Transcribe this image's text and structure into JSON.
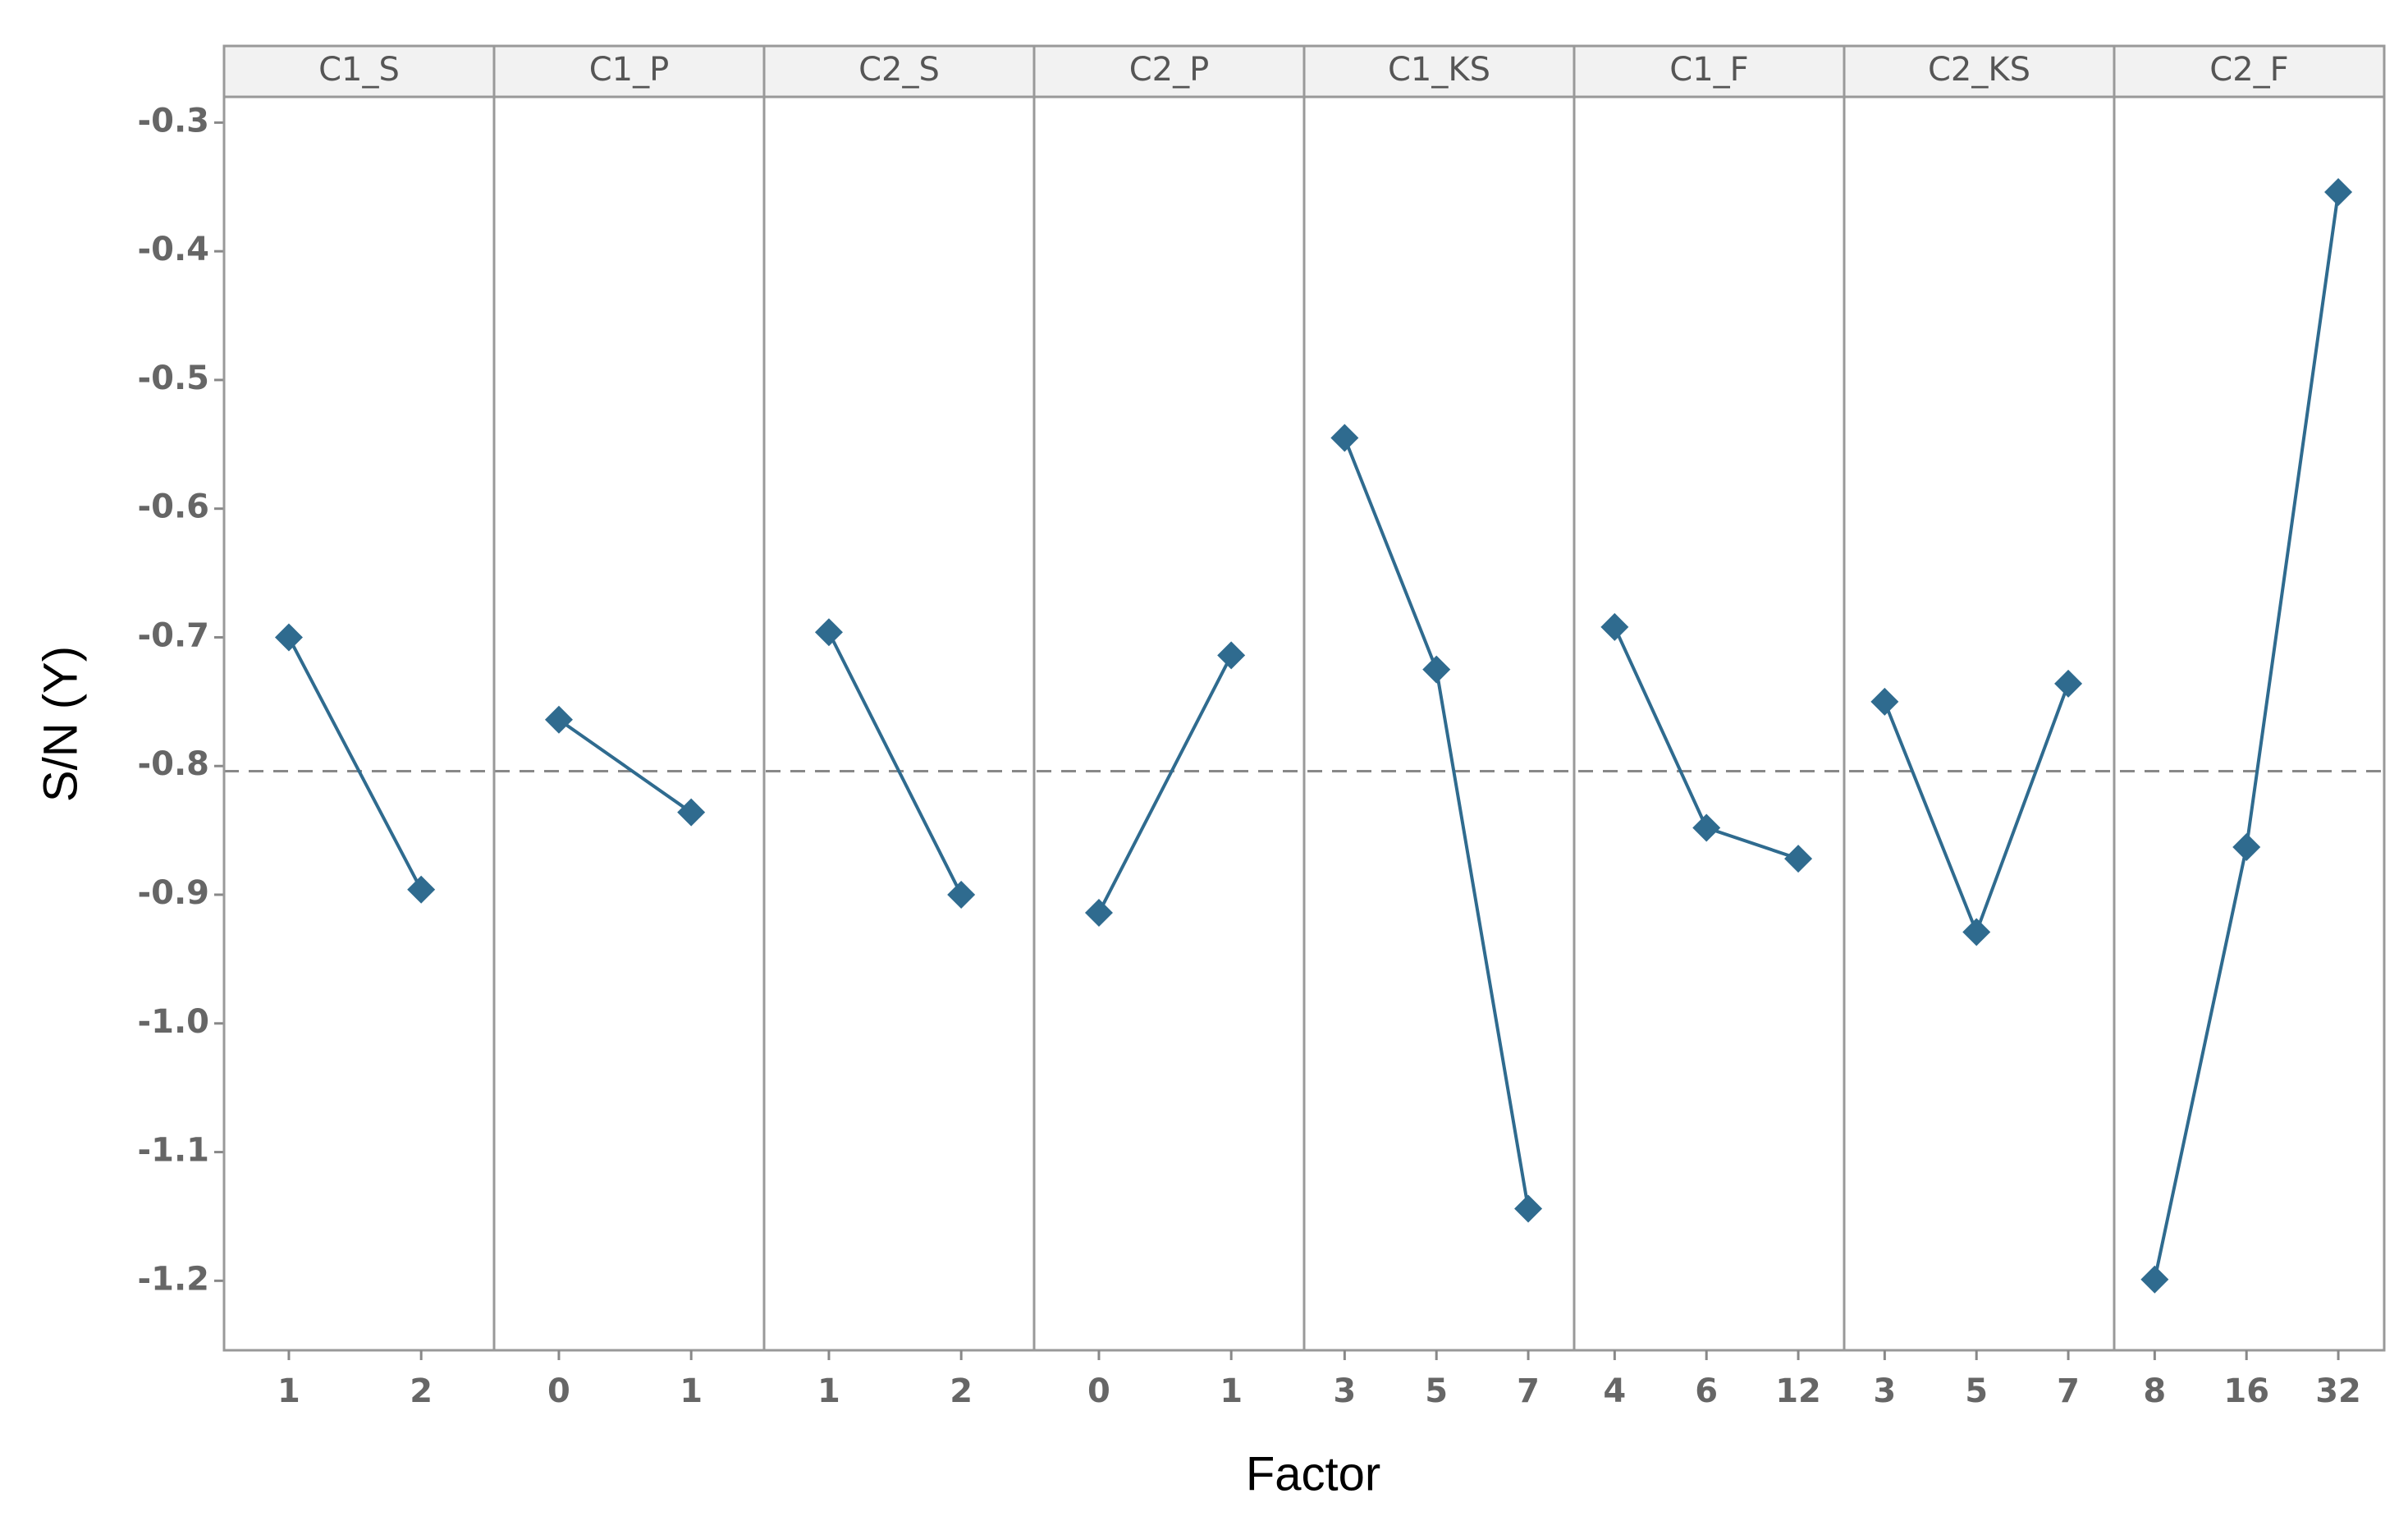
{
  "chart_data": {
    "type": "line",
    "xlabel": "Factor",
    "ylabel": "S/N (Y)",
    "color": "#2f6b8f",
    "ylim": [
      -1.254,
      -0.28
    ],
    "yticks": [
      -0.3,
      -0.4,
      -0.5,
      -0.6,
      -0.7,
      -0.8,
      -0.9,
      {
        "value": -1,
        "label": "-1.0"
      },
      -1.1,
      -1.2
    ],
    "reference_line": -0.804,
    "panels": [
      {
        "title": "C1_S",
        "categories": [
          "1",
          "2"
        ],
        "values": [
          -0.7,
          -0.896
        ]
      },
      {
        "title": "C1_P",
        "categories": [
          "0",
          "1"
        ],
        "values": [
          -0.764,
          -0.836
        ]
      },
      {
        "title": "C2_S",
        "categories": [
          "1",
          "2"
        ],
        "values": [
          -0.696,
          -0.9
        ]
      },
      {
        "title": "C2_P",
        "categories": [
          "0",
          "1"
        ],
        "values": [
          -0.914,
          -0.714
        ]
      },
      {
        "title": "C1_KS",
        "categories": [
          "3",
          "5",
          "7"
        ],
        "values": [
          -0.545,
          -0.725,
          -1.144
        ]
      },
      {
        "title": "C1_F",
        "categories": [
          "4",
          "6",
          "12"
        ],
        "values": [
          -0.692,
          -0.848,
          -0.872
        ]
      },
      {
        "title": "C2_KS",
        "categories": [
          "3",
          "5",
          "7"
        ],
        "values": [
          -0.75,
          -0.929,
          -0.736
        ]
      },
      {
        "title": "C2_F",
        "categories": [
          "8",
          "16",
          "32"
        ],
        "values": [
          -1.199,
          -0.863,
          -0.354
        ]
      }
    ]
  }
}
